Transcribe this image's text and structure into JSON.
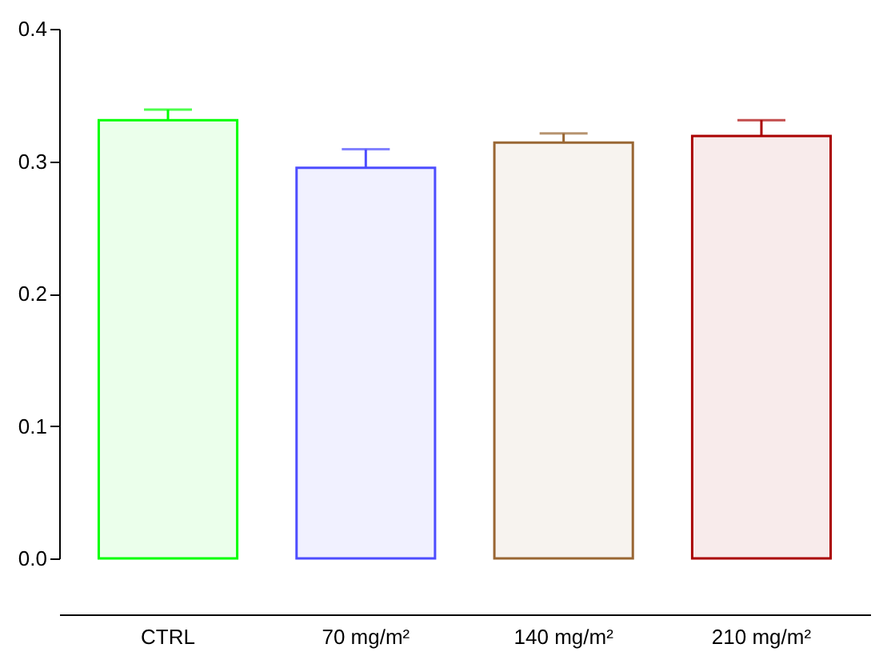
{
  "chart_data": {
    "type": "bar",
    "categories": [
      "CTRL",
      "70 mg/m²",
      "140 mg/m²",
      "210 mg/m²"
    ],
    "values": [
      0.331,
      0.295,
      0.314,
      0.319
    ],
    "colors": [
      "#00ff00",
      "#4d4dff",
      "#996633",
      "#aa0000"
    ],
    "errors": [
      [
        0.331,
        0.339
      ],
      [
        0.295,
        0.309
      ],
      [
        0.314,
        0.321
      ],
      [
        0.319,
        0.331
      ]
    ],
    "ylim": [
      0,
      0.4
    ],
    "yticks": [
      {
        "value": 0,
        "label": "0.0"
      },
      0.1,
      0.2,
      0.3,
      0.4
    ],
    "grid": false
  }
}
